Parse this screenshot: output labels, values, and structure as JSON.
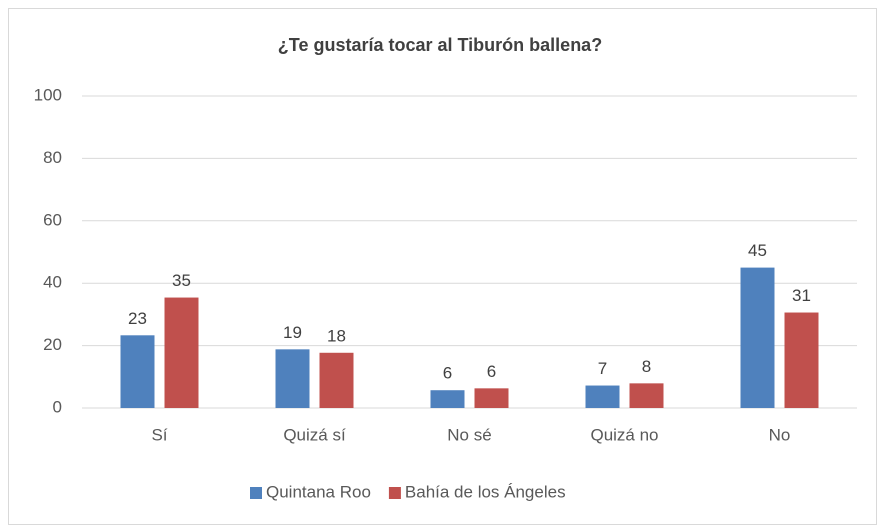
{
  "chart_data": {
    "type": "bar",
    "title": "¿Te gustaría tocar al Tiburón ballena?",
    "categories": [
      "Sí",
      "Quizá sí",
      "No sé",
      "Quizá no",
      "No"
    ],
    "series": [
      {
        "name": "Quintana Roo",
        "color": "#4f81bd",
        "values": [
          23.3,
          18.8,
          5.7,
          7.2,
          45
        ],
        "value_labels": [
          "23",
          "19",
          "6",
          "7",
          "45"
        ]
      },
      {
        "name": "Bahía de los Ángeles",
        "color": "#c0504d",
        "values": [
          35.4,
          17.7,
          6.3,
          7.9,
          30.6
        ],
        "value_labels": [
          "35",
          "18",
          "6",
          "8",
          "31"
        ]
      }
    ],
    "ylim": [
      0,
      100
    ],
    "yticks": [
      0,
      20,
      40,
      60,
      80,
      100
    ],
    "grid": true,
    "legend": "bottom"
  }
}
